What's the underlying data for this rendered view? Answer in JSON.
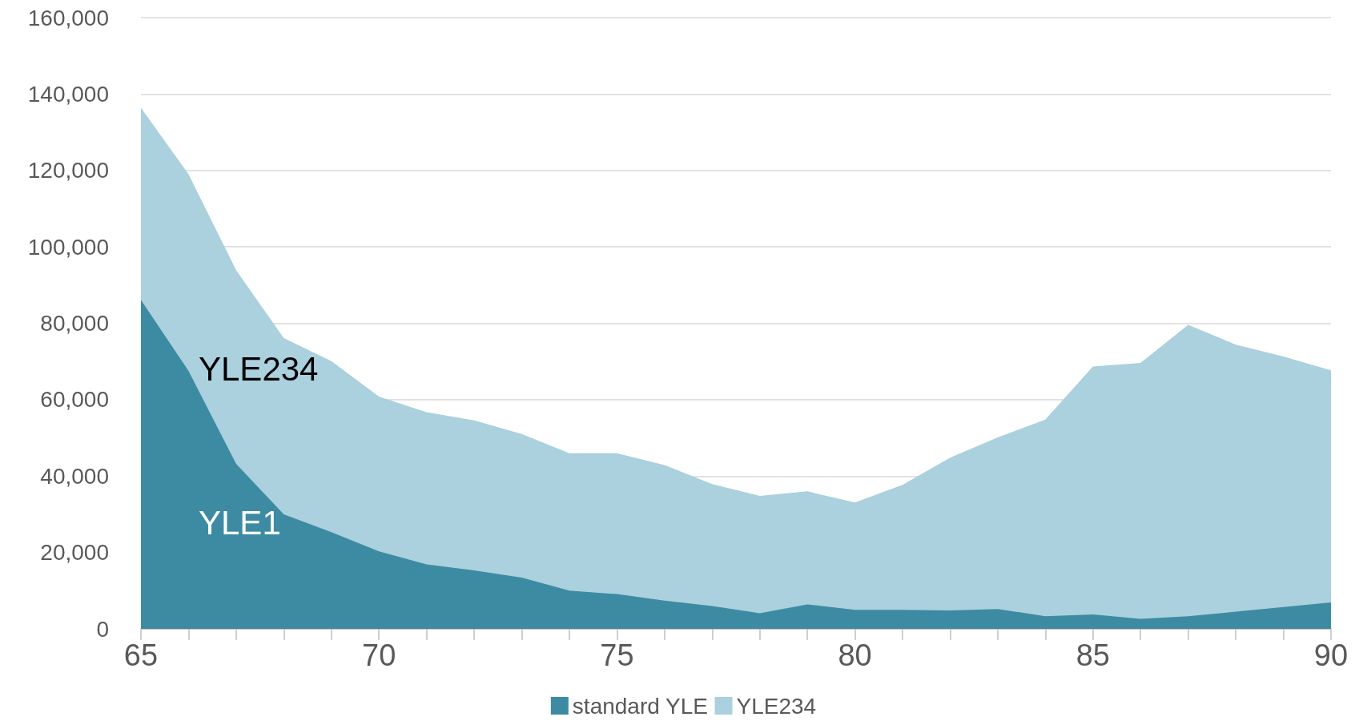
{
  "chart_data": {
    "type": "area",
    "stacked": true,
    "x": [
      65,
      66,
      67,
      68,
      69,
      70,
      71,
      72,
      73,
      74,
      75,
      76,
      77,
      78,
      79,
      80,
      81,
      82,
      83,
      84,
      85,
      86,
      87,
      88,
      89,
      90
    ],
    "series": [
      {
        "name": "standard YLE",
        "color": "#3d8ba3",
        "values": [
          86100,
          67500,
          43200,
          30000,
          25300,
          20300,
          16900,
          15300,
          13400,
          10000,
          9100,
          7400,
          6000,
          4100,
          6400,
          5000,
          5000,
          4800,
          5200,
          3300,
          3800,
          2600,
          3300,
          4500,
          5700,
          6900
        ]
      },
      {
        "name": "YLE234",
        "color": "#abd0de",
        "values": [
          50300,
          51500,
          50700,
          46100,
          44800,
          40500,
          39800,
          39300,
          37600,
          36000,
          36900,
          35500,
          31900,
          30700,
          29600,
          28100,
          32700,
          40000,
          44900,
          51500,
          64900,
          67000,
          76300,
          69900,
          65600,
          60800
        ]
      }
    ],
    "xlim": [
      65,
      90
    ],
    "xticks": [
      65,
      {
        "value": 66,
        "label": null
      },
      {
        "value": 67,
        "label": null
      },
      {
        "value": 68,
        "label": null
      },
      {
        "value": 69,
        "label": null
      },
      70,
      {
        "value": 71,
        "label": null
      },
      {
        "value": 72,
        "label": null
      },
      {
        "value": 73,
        "label": null
      },
      {
        "value": 74,
        "label": null
      },
      75,
      {
        "value": 76,
        "label": null
      },
      {
        "value": 77,
        "label": null
      },
      {
        "value": 78,
        "label": null
      },
      {
        "value": 79,
        "label": null
      },
      80,
      {
        "value": 81,
        "label": null
      },
      {
        "value": 82,
        "label": null
      },
      {
        "value": 83,
        "label": null
      },
      {
        "value": 84,
        "label": null
      },
      85,
      {
        "value": 86,
        "label": null
      },
      {
        "value": 87,
        "label": null
      },
      {
        "value": 88,
        "label": null
      },
      {
        "value": 89,
        "label": null
      },
      90
    ],
    "ylim": [
      0,
      160000
    ],
    "yticks": [
      0,
      {
        "value": 20000,
        "label": "20,000"
      },
      {
        "value": 40000,
        "label": "40,000"
      },
      {
        "value": 60000,
        "label": "60,000"
      },
      {
        "value": 80000,
        "label": "80,000"
      },
      {
        "value": 100000,
        "label": "100,000"
      },
      {
        "value": 120000,
        "label": "120,000"
      },
      {
        "value": 140000,
        "label": "140,000"
      },
      {
        "value": 160000,
        "label": "160,000"
      }
    ],
    "grid": "y",
    "legend": "bottom",
    "annotations": [
      "YLE234",
      "YLE1"
    ]
  }
}
